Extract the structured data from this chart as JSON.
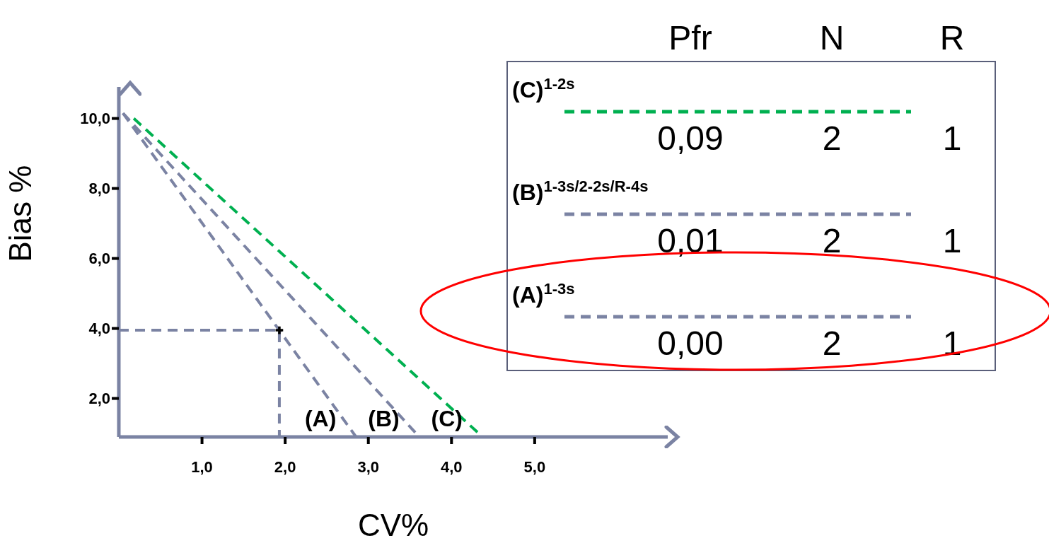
{
  "chart_data": {
    "type": "line",
    "xlabel": "CV%",
    "ylabel": "Bias %",
    "xlim": [
      0,
      6.6
    ],
    "ylim": [
      0.9,
      10.9
    ],
    "xticks": [
      {
        "value": 1,
        "label": "1,0"
      },
      {
        "value": 2,
        "label": "2,0"
      },
      {
        "value": 3,
        "label": "3,0"
      },
      {
        "value": 4,
        "label": "4,0"
      },
      {
        "value": 5,
        "label": "5,0"
      }
    ],
    "yticks": [
      {
        "value": 2,
        "label": "2,0"
      },
      {
        "value": 4,
        "label": "4,0"
      },
      {
        "value": 6,
        "label": "6,0"
      },
      {
        "value": 8,
        "label": "8,0"
      },
      {
        "value": 10,
        "label": "10,0"
      }
    ],
    "grid": false,
    "legend": "top right",
    "marker": "none",
    "line_style": "dashed",
    "series": [
      {
        "name": "(C)$^{1-2s}$",
        "color": "#00b050",
        "x": [
          0.18,
          4.37
        ],
        "values": [
          10.0,
          0.91
        ]
      },
      {
        "name": "(B)$^{1-3s/2-2s/R-4s}$",
        "color": "#7b83a3",
        "x": [
          0.05,
          3.61
        ],
        "values": [
          10.15,
          0.91
        ]
      },
      {
        "name": "(A)$^{1-3s}$",
        "color": "#7b83a3",
        "x": [
          0.05,
          2.85
        ],
        "values": [
          10.15,
          0.91
        ]
      },
      {
        "type": "line",
        "color": "#7b83a3",
        "x": [
          0,
          1.93,
          1.93
        ],
        "values": [
          3.95,
          3.95,
          0.9
        ]
      },
      {
        "type": "scatter",
        "color": "#000000",
        "marker": "cross",
        "x": [
          1.93
        ],
        "values": [
          3.95
        ]
      }
    ],
    "annotations": [
      {
        "text": "(A)",
        "x": 2.85,
        "y": 0.91
      },
      {
        "text": "(B)",
        "x": 3.61,
        "y": 0.91
      },
      {
        "text": "(C)",
        "x": 4.37,
        "y": 0.91
      },
      "Pfr",
      "N",
      "R",
      "0,09",
      "2",
      "1",
      "0,01",
      "2",
      "1",
      "0,00",
      "2",
      "1"
    ]
  }
}
